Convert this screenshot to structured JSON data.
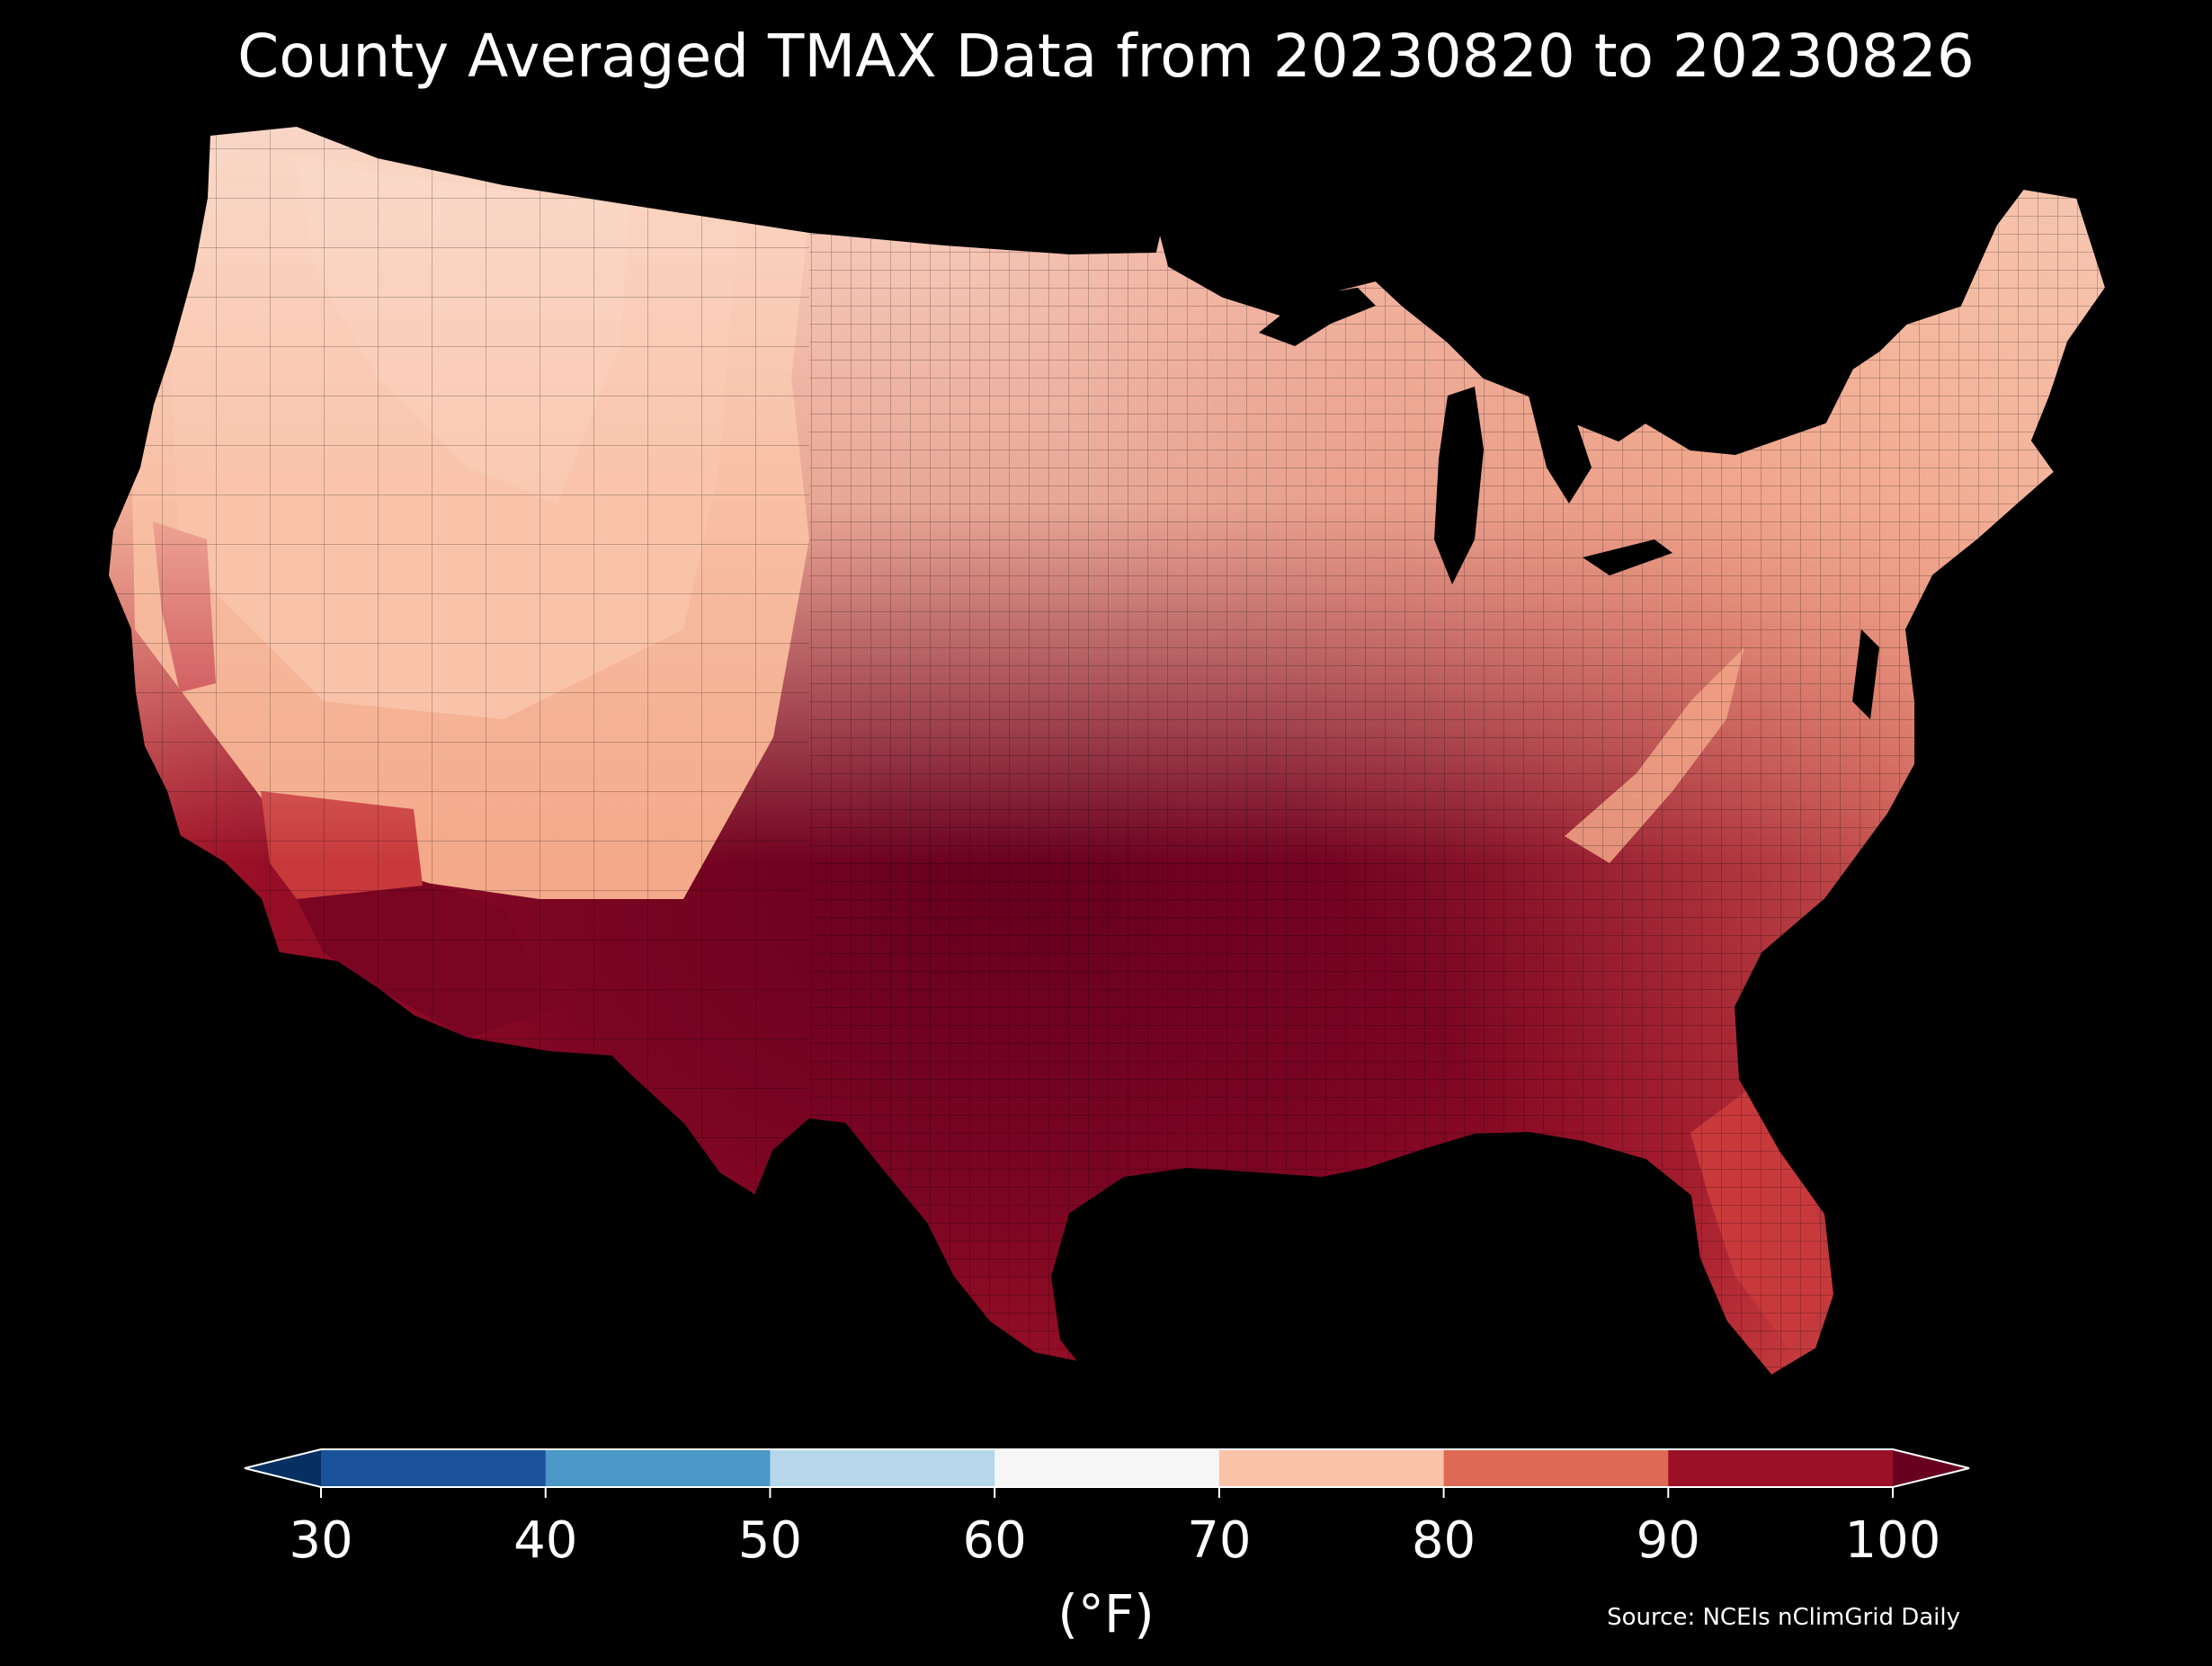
{
  "title": "County Averaged TMAX Data from 20230820 to 20230826",
  "legend": {
    "unit": "(°F)",
    "ticks": [
      "30",
      "40",
      "50",
      "60",
      "70",
      "80",
      "90",
      "100"
    ],
    "extend": "both",
    "bins": [
      {
        "range": "<30",
        "color": "#053061"
      },
      {
        "range": "30-40",
        "color": "#1a539a"
      },
      {
        "range": "40-50",
        "color": "#4b97c8"
      },
      {
        "range": "50-60",
        "color": "#b6d7ea"
      },
      {
        "range": "60-70",
        "color": "#f6f6f6"
      },
      {
        "range": "70-80",
        "color": "#f9c3a9"
      },
      {
        "range": "80-90",
        "color": "#de6a55"
      },
      {
        "range": "90-100",
        "color": "#9b1027"
      },
      {
        "range": ">100",
        "color": "#67001f"
      }
    ]
  },
  "source": "Source: NCEIs nClimGrid Daily",
  "map": {
    "region": "Contiguous United States",
    "units": "counties",
    "background": "#000000"
  }
}
